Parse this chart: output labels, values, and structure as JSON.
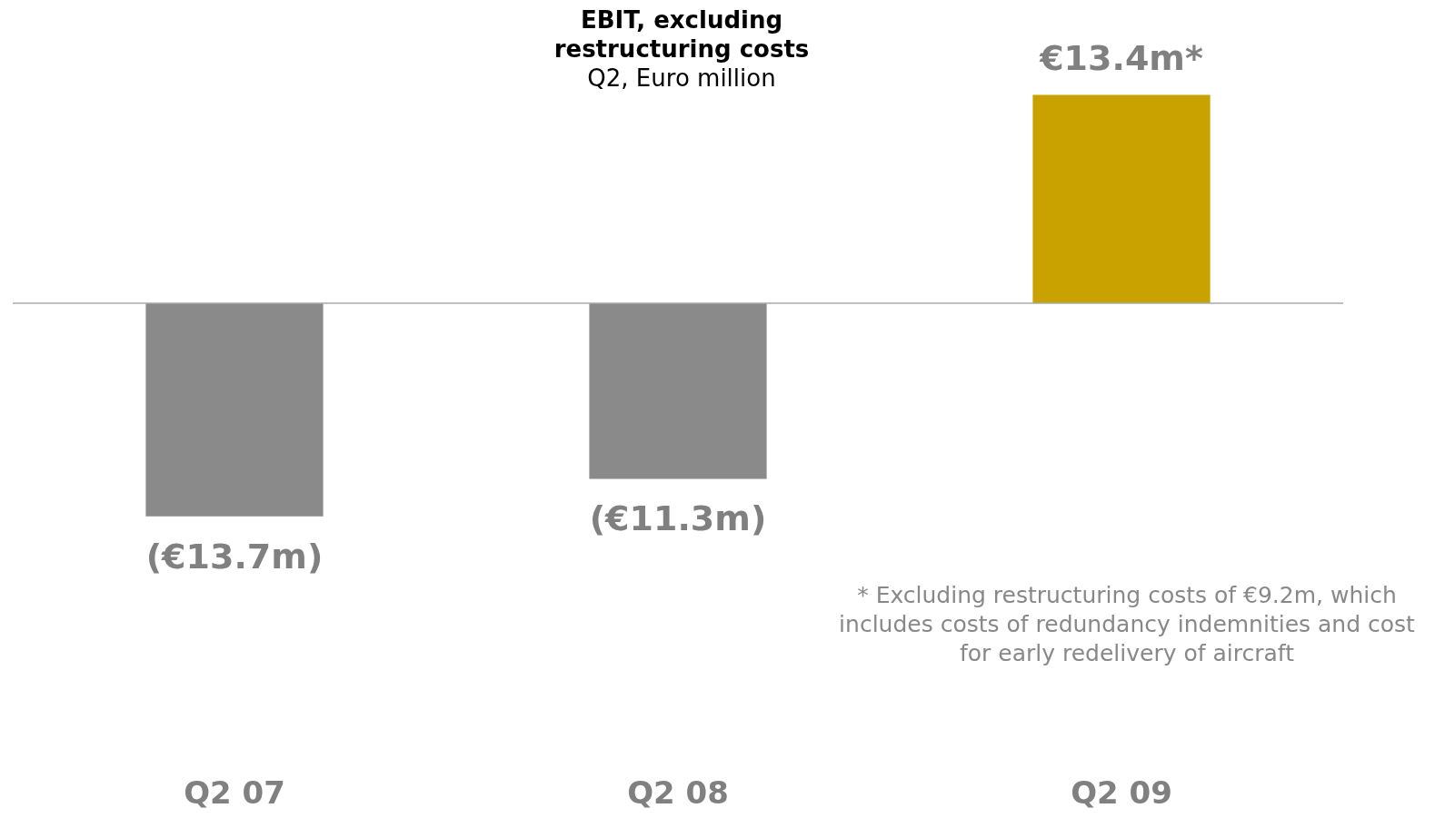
{
  "chart_data": {
    "type": "bar",
    "title": "EBIT, excluding restructuring costs",
    "subtitle": "Q2, Euro million",
    "categories": [
      "Q2 07",
      "Q2 08",
      "Q2 09"
    ],
    "values": [
      -13.7,
      -11.3,
      13.4
    ],
    "colors": [
      "#8a8a8a",
      "#8a8a8a",
      "#c9a200"
    ],
    "value_labels": [
      "(€13.7m)",
      "(€11.3m)",
      "€13.4m*"
    ],
    "annotations": [
      "* Excluding restructuring costs of €9.2m, which includes costs of redundancy indemnities and cost for early redelivery of aircraft"
    ]
  }
}
